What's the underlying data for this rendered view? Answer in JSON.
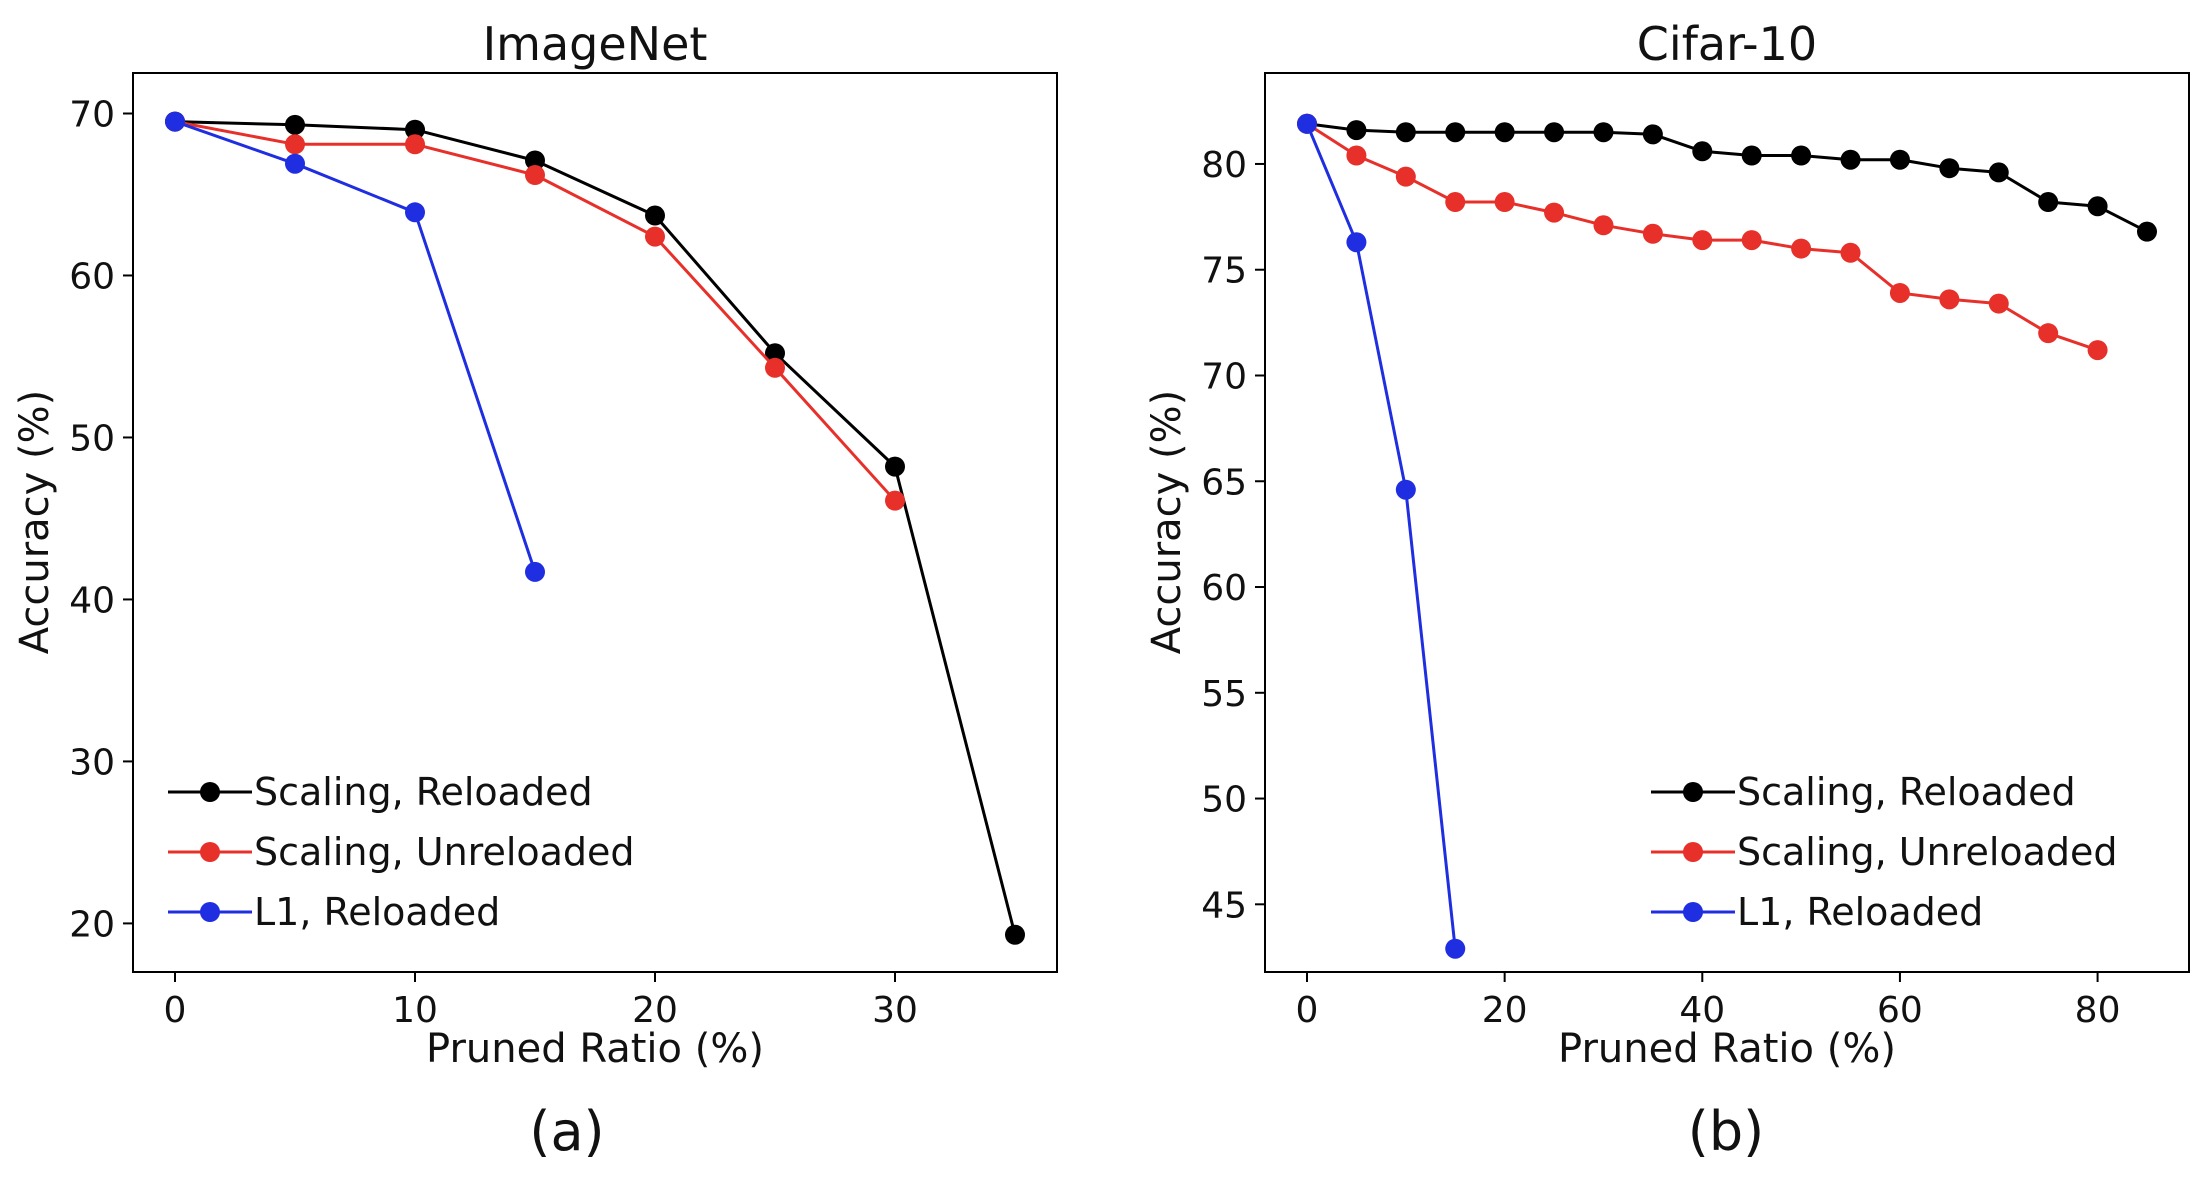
{
  "chart_data": [
    {
      "type": "line",
      "title": "ImageNet",
      "xlabel": "Pruned Ratio (%)",
      "ylabel": "Accuracy (%)",
      "caption": "(a)",
      "xlim": [
        -1.75,
        36.75
      ],
      "ylim": [
        17.0,
        72.5
      ],
      "xticks": [
        0,
        10,
        20,
        30
      ],
      "yticks": [
        20,
        30,
        40,
        50,
        60,
        70
      ],
      "legend_position": "lower-left",
      "series": [
        {
          "name": "Scaling, Reloaded",
          "color": "#000000",
          "x": [
            0,
            5,
            10,
            15,
            20,
            25,
            30,
            35
          ],
          "y": [
            69.5,
            69.3,
            69.0,
            67.1,
            63.7,
            55.2,
            48.2,
            19.3
          ]
        },
        {
          "name": "Scaling, Unreloaded",
          "color": "#e8302a",
          "x": [
            0,
            5,
            10,
            15,
            20,
            25,
            30
          ],
          "y": [
            69.5,
            68.1,
            68.1,
            66.2,
            62.4,
            54.3,
            46.1
          ]
        },
        {
          "name": "L1, Reloaded",
          "color": "#1f2ee0",
          "x": [
            0,
            5,
            10,
            15
          ],
          "y": [
            69.5,
            66.9,
            63.9,
            41.7
          ]
        }
      ]
    },
    {
      "type": "line",
      "title": "Cifar-10",
      "xlabel": "Pruned Ratio (%)",
      "ylabel": "Accuracy (%)",
      "caption": "(b)",
      "xlim": [
        -4.25,
        89.25
      ],
      "ylim": [
        41.8,
        84.3
      ],
      "xticks": [
        0,
        20,
        40,
        60,
        80
      ],
      "yticks": [
        45,
        50,
        55,
        60,
        65,
        70,
        75,
        80
      ],
      "legend_position": "lower-right",
      "series": [
        {
          "name": "Scaling, Reloaded",
          "color": "#000000",
          "x": [
            0,
            5,
            10,
            15,
            20,
            25,
            30,
            35,
            40,
            45,
            50,
            55,
            60,
            65,
            70,
            75,
            80,
            85
          ],
          "y": [
            81.9,
            81.6,
            81.5,
            81.5,
            81.5,
            81.5,
            81.5,
            81.4,
            80.6,
            80.4,
            80.4,
            80.2,
            80.2,
            79.8,
            79.6,
            78.2,
            78.0,
            76.8
          ]
        },
        {
          "name": "Scaling, Unreloaded",
          "color": "#e8302a",
          "x": [
            0,
            5,
            10,
            15,
            20,
            25,
            30,
            35,
            40,
            45,
            50,
            55,
            60,
            65,
            70,
            75,
            80
          ],
          "y": [
            81.9,
            80.4,
            79.4,
            78.2,
            78.2,
            77.7,
            77.1,
            76.7,
            76.4,
            76.4,
            76.0,
            75.8,
            73.9,
            73.6,
            73.4,
            72.0,
            71.2
          ]
        },
        {
          "name": "L1, Reloaded",
          "color": "#1f2ee0",
          "x": [
            0,
            5,
            10,
            15
          ],
          "y": [
            81.9,
            76.3,
            64.6,
            42.9
          ]
        }
      ]
    }
  ]
}
